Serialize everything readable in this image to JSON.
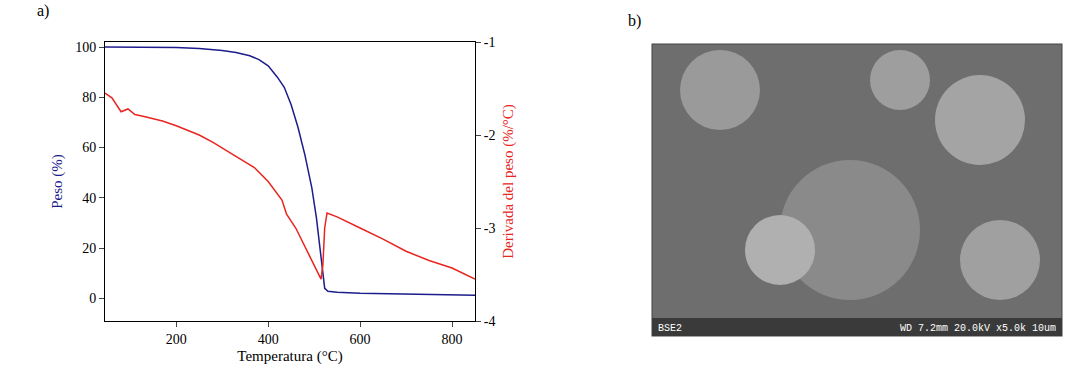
{
  "chart_data": {
    "type": "line",
    "annotations": [
      "a)"
    ],
    "x_label": "Temperatura (°C)",
    "y_label": "Peso (%)",
    "y2_label": "Derivada del peso (%/°C)",
    "xlim": [
      45,
      850
    ],
    "xticks": [
      200,
      400,
      600,
      800
    ],
    "ylim": [
      -9,
      102
    ],
    "yticks": [
      0,
      20,
      40,
      60,
      80,
      100
    ],
    "y2lim": [
      -4,
      -1
    ],
    "y2ticks": [
      -4,
      -3,
      -2,
      -1
    ],
    "grid": false,
    "series": [
      {
        "name": "Peso (%)",
        "color": "#1c1c8c",
        "x": [
          45,
          100,
          200,
          250,
          300,
          330,
          360,
          380,
          400,
          420,
          435,
          450,
          465,
          480,
          495,
          505,
          512,
          518,
          523,
          530,
          550,
          600,
          700,
          800,
          850
        ],
        "values": [
          100,
          100,
          99.8,
          99.4,
          98.6,
          97.8,
          96.5,
          95,
          92.5,
          88,
          84,
          77,
          68,
          57,
          44,
          32,
          22,
          12,
          4,
          2.8,
          2.4,
          2,
          1.6,
          1.3,
          1.2
        ]
      },
      {
        "name": "Derivada del peso (%/°C)",
        "color": "#e8251f",
        "axis": "y2",
        "x": [
          45,
          60,
          80,
          95,
          110,
          130,
          170,
          200,
          250,
          280,
          320,
          370,
          400,
          430,
          440,
          460,
          490,
          505,
          515,
          519,
          523,
          528,
          550,
          600,
          650,
          700,
          750,
          800,
          850
        ],
        "values": [
          -1.55,
          -1.6,
          -1.75,
          -1.72,
          -1.78,
          -1.8,
          -1.85,
          -1.9,
          -2.0,
          -2.08,
          -2.2,
          -2.35,
          -2.5,
          -2.7,
          -2.85,
          -3.0,
          -3.3,
          -3.45,
          -3.55,
          -3.4,
          -3.0,
          -2.84,
          -2.88,
          -3.0,
          -3.12,
          -3.25,
          -3.35,
          -3.43,
          -3.55
        ]
      }
    ]
  },
  "micrograph": {
    "label": "b)",
    "footer_left": "BSE2",
    "footer_right": "WD 7.2mm 20.0kV x5.0k 10um"
  }
}
